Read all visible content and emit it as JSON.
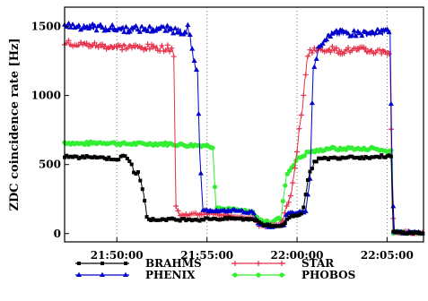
{
  "chart_data": {
    "type": "line",
    "title": "",
    "ylabel": "ZDC coincidence rate [Hz]",
    "xlabel": "",
    "x_unit": "time (HH:MM:SS)",
    "x_ticks": [
      {
        "value": 21.8333,
        "label": "21:50:00"
      },
      {
        "value": 21.9167,
        "label": "21:55:00"
      },
      {
        "value": 22.0,
        "label": "22:00:00"
      },
      {
        "value": 22.0833,
        "label": "22:05:00"
      }
    ],
    "y_ticks": [
      0,
      500,
      1000,
      1500
    ],
    "xlim": [
      21.785,
      22.117
    ],
    "ylim": [
      -60,
      1640
    ],
    "grid": "vertical dotted lines at x ticks",
    "legend_position": "bottom",
    "series": [
      {
        "name": "BRAHMS",
        "color": "#000000",
        "marker": "square",
        "points": [
          [
            21.785,
            560
          ],
          [
            21.8,
            550
          ],
          [
            21.81,
            560
          ],
          [
            21.825,
            545
          ],
          [
            21.835,
            540
          ],
          [
            21.84,
            565
          ],
          [
            21.845,
            530
          ],
          [
            21.848,
            480
          ],
          [
            21.85,
            420
          ],
          [
            21.853,
            440
          ],
          [
            21.855,
            390
          ],
          [
            21.858,
            300
          ],
          [
            21.861,
            130
          ],
          [
            21.864,
            100
          ],
          [
            21.87,
            100
          ],
          [
            21.88,
            105
          ],
          [
            21.89,
            100
          ],
          [
            21.9,
            105
          ],
          [
            21.91,
            100
          ],
          [
            21.92,
            110
          ],
          [
            21.93,
            105
          ],
          [
            21.94,
            110
          ],
          [
            21.95,
            105
          ],
          [
            21.96,
            105
          ],
          [
            21.965,
            90
          ],
          [
            21.97,
            60
          ],
          [
            21.98,
            55
          ],
          [
            21.988,
            60
          ],
          [
            21.992,
            120
          ],
          [
            22.0,
            135
          ],
          [
            22.005,
            150
          ],
          [
            22.01,
            380
          ],
          [
            22.012,
            440
          ],
          [
            22.016,
            520
          ],
          [
            22.02,
            540
          ],
          [
            22.03,
            545
          ],
          [
            22.04,
            550
          ],
          [
            22.05,
            560
          ],
          [
            22.06,
            550
          ],
          [
            22.07,
            555
          ],
          [
            22.08,
            560
          ],
          [
            22.087,
            560
          ],
          [
            22.089,
            10
          ],
          [
            22.1,
            5
          ],
          [
            22.117,
            5
          ]
        ]
      },
      {
        "name": "PHENIX",
        "color": "#0000cc",
        "marker": "triangle",
        "points": [
          [
            21.785,
            1510
          ],
          [
            21.8,
            1500
          ],
          [
            21.82,
            1490
          ],
          [
            21.84,
            1480
          ],
          [
            21.86,
            1480
          ],
          [
            21.88,
            1480
          ],
          [
            21.89,
            1470
          ],
          [
            21.895,
            1460
          ],
          [
            21.899,
            1500
          ],
          [
            21.902,
            1380
          ],
          [
            21.905,
            1230
          ],
          [
            21.908,
            1150
          ],
          [
            21.91,
            580
          ],
          [
            21.913,
            160
          ],
          [
            21.92,
            170
          ],
          [
            21.93,
            160
          ],
          [
            21.94,
            170
          ],
          [
            21.95,
            160
          ],
          [
            21.96,
            150
          ],
          [
            21.965,
            60
          ],
          [
            21.98,
            50
          ],
          [
            21.988,
            55
          ],
          [
            21.99,
            140
          ],
          [
            22.0,
            150
          ],
          [
            22.008,
            160
          ],
          [
            22.012,
            400
          ],
          [
            22.015,
            1200
          ],
          [
            22.018,
            1280
          ],
          [
            22.022,
            1380
          ],
          [
            22.03,
            1440
          ],
          [
            22.04,
            1450
          ],
          [
            22.05,
            1450
          ],
          [
            22.06,
            1450
          ],
          [
            22.07,
            1450
          ],
          [
            22.08,
            1460
          ],
          [
            22.086,
            1460
          ],
          [
            22.088,
            400
          ],
          [
            22.09,
            10
          ],
          [
            22.117,
            5
          ]
        ]
      },
      {
        "name": "STAR",
        "color": "#e8304a",
        "marker": "plus",
        "points": [
          [
            21.785,
            1380
          ],
          [
            21.8,
            1370
          ],
          [
            21.82,
            1360
          ],
          [
            21.84,
            1350
          ],
          [
            21.86,
            1350
          ],
          [
            21.875,
            1345
          ],
          [
            21.884,
            1340
          ],
          [
            21.886,
            1300
          ],
          [
            21.888,
            200
          ],
          [
            21.892,
            130
          ],
          [
            21.9,
            140
          ],
          [
            21.91,
            140
          ],
          [
            21.92,
            150
          ],
          [
            21.93,
            130
          ],
          [
            21.94,
            130
          ],
          [
            21.95,
            120
          ],
          [
            21.96,
            110
          ],
          [
            21.965,
            60
          ],
          [
            21.975,
            55
          ],
          [
            21.985,
            60
          ],
          [
            21.995,
            300
          ],
          [
            22.0,
            600
          ],
          [
            22.002,
            750
          ],
          [
            22.005,
            900
          ],
          [
            22.007,
            1100
          ],
          [
            22.01,
            1300
          ],
          [
            22.015,
            1340
          ],
          [
            22.02,
            1330
          ],
          [
            22.03,
            1340
          ],
          [
            22.04,
            1320
          ],
          [
            22.05,
            1330
          ],
          [
            22.06,
            1330
          ],
          [
            22.07,
            1320
          ],
          [
            22.08,
            1320
          ],
          [
            22.086,
            1310
          ],
          [
            22.088,
            200
          ],
          [
            22.09,
            10
          ],
          [
            22.117,
            5
          ]
        ]
      },
      {
        "name": "PHOBOS",
        "color": "#33ee33",
        "marker": "circle",
        "points": [
          [
            21.785,
            660
          ],
          [
            21.8,
            650
          ],
          [
            21.82,
            660
          ],
          [
            21.84,
            650
          ],
          [
            21.86,
            650
          ],
          [
            21.88,
            650
          ],
          [
            21.9,
            640
          ],
          [
            21.915,
            640
          ],
          [
            21.922,
            630
          ],
          [
            21.925,
            200
          ],
          [
            21.93,
            180
          ],
          [
            21.94,
            175
          ],
          [
            21.95,
            165
          ],
          [
            21.96,
            150
          ],
          [
            21.965,
            100
          ],
          [
            21.975,
            80
          ],
          [
            21.982,
            110
          ],
          [
            21.985,
            100
          ],
          [
            21.99,
            420
          ],
          [
            21.995,
            480
          ],
          [
            22.0,
            540
          ],
          [
            22.005,
            560
          ],
          [
            22.01,
            590
          ],
          [
            22.02,
            600
          ],
          [
            22.03,
            620
          ],
          [
            22.04,
            610
          ],
          [
            22.05,
            620
          ],
          [
            22.06,
            610
          ],
          [
            22.07,
            620
          ],
          [
            22.08,
            600
          ],
          [
            22.088,
            600
          ],
          [
            22.089,
            10
          ],
          [
            22.117,
            5
          ]
        ]
      }
    ]
  }
}
